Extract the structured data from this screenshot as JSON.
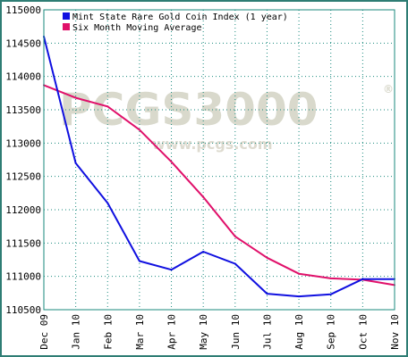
{
  "watermark": {
    "brand": "PCGS3000",
    "reg_mark": "®",
    "url": "www.pcgs.com"
  },
  "colors": {
    "frame": "#2e7d74",
    "grid": "#1a8a7e",
    "series1": "#1010e0",
    "series2": "#e0106a"
  },
  "chart_data": {
    "type": "line",
    "categories": [
      "Dec 09",
      "Jan 10",
      "Feb 10",
      "Mar 10",
      "Apr 10",
      "May 10",
      "Jun 10",
      "Jul 10",
      "Aug 10",
      "Sep 10",
      "Oct 10",
      "Nov 10"
    ],
    "series": [
      {
        "name": "Mint State Rare Gold Coin Index (1 year)",
        "color": "#1010e0",
        "values": [
          114600,
          112700,
          112100,
          111230,
          111100,
          111370,
          111190,
          110740,
          110700,
          110730,
          110960,
          110960
        ]
      },
      {
        "name": "Six Month Moving Average",
        "color": "#e0106a",
        "values": [
          113870,
          113680,
          113550,
          113200,
          112720,
          112190,
          111600,
          111280,
          111040,
          110970,
          110950,
          110870
        ]
      }
    ],
    "ylim": [
      110500,
      115000
    ],
    "yticks": [
      "115000",
      "114500",
      "114000",
      "113500",
      "113000",
      "112500",
      "112000",
      "111500",
      "111000",
      "110500"
    ],
    "legend_position": "top-left",
    "grid": true
  }
}
